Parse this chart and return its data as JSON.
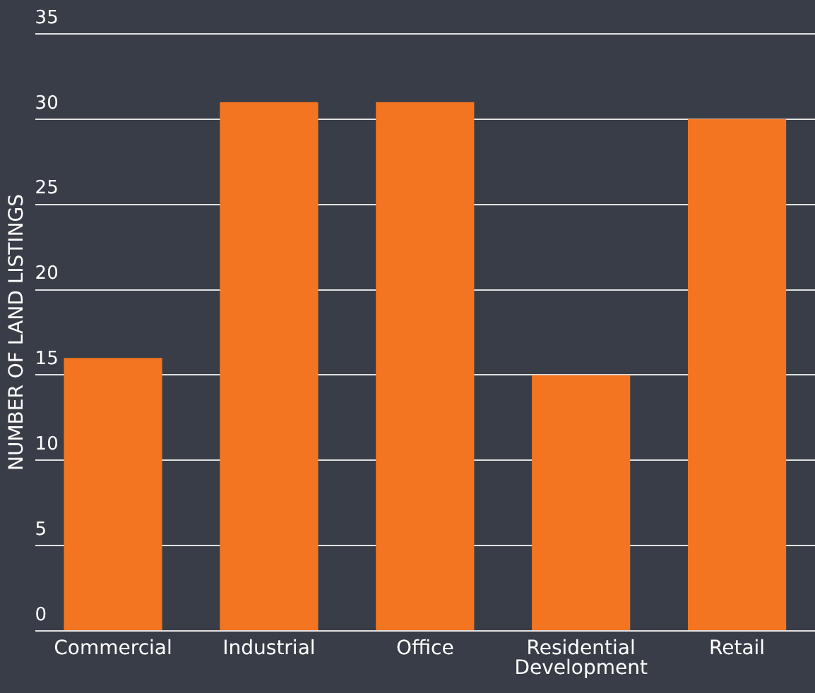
{
  "chart_data": {
    "type": "bar",
    "ylabel": "NUMBER OF LAND LISTINGS",
    "categories": [
      "Commercial",
      "Industrial",
      "Office",
      "Residential Development",
      "Retail"
    ],
    "values": [
      16,
      31,
      31,
      15,
      30
    ],
    "color": "#f47521",
    "ylim": [
      0,
      35
    ],
    "yticks": [
      0,
      5,
      10,
      15,
      20,
      25,
      30,
      35
    ],
    "grid": "y"
  }
}
